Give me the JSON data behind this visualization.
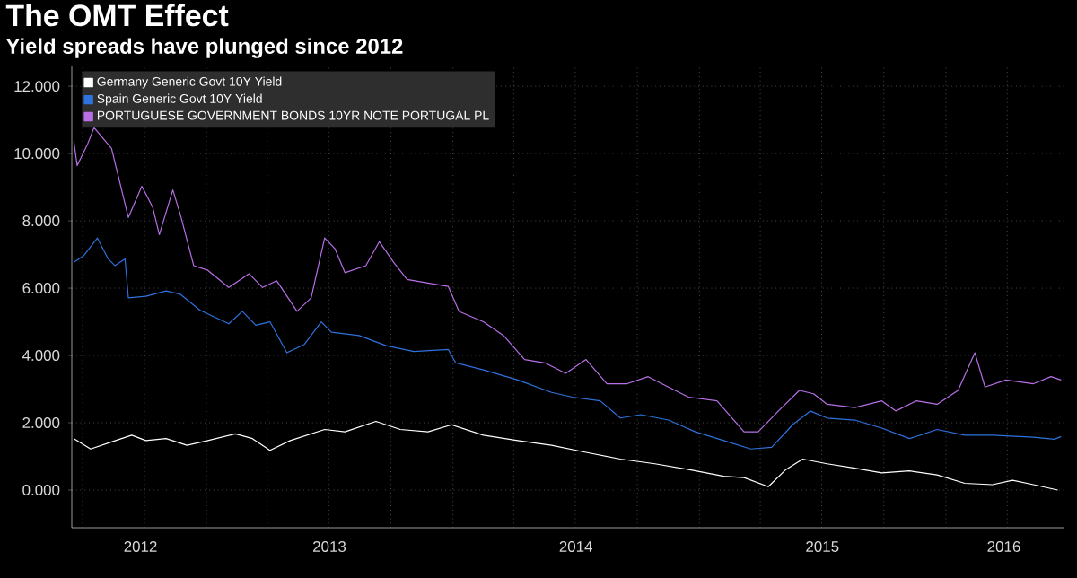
{
  "chart_data": {
    "type": "line",
    "title": "The OMT Effect",
    "subtitle": "Yield spreads have plunged since 2012",
    "xlim": [
      "2012-06-15",
      "2016-06-25"
    ],
    "ylim": [
      -1.12,
      12.59
    ],
    "yticks": [
      {
        "value": 0,
        "label": "0.000"
      },
      {
        "value": 2,
        "label": "2.000"
      },
      {
        "value": 4,
        "label": "4.000"
      },
      {
        "value": 6,
        "label": "6.000"
      },
      {
        "value": 8,
        "label": "8.000"
      },
      {
        "value": 10,
        "label": "10.000"
      },
      {
        "value": 12,
        "label": "12.000"
      }
    ],
    "xticks": [
      {
        "value": "2012-07-01",
        "label": null
      },
      {
        "value": "2012-10-01",
        "label": null
      },
      {
        "value": "2013-01-01",
        "label": null
      },
      {
        "value": "2013-04-01",
        "label": null
      },
      {
        "value": "2013-07-01",
        "label": null
      },
      {
        "value": "2013-10-01",
        "label": null
      },
      {
        "value": "2014-01-01",
        "label": null
      },
      {
        "value": "2014-04-01",
        "label": null
      },
      {
        "value": "2014-07-01",
        "label": null
      },
      {
        "value": "2014-10-01",
        "label": null
      },
      {
        "value": "2015-01-01",
        "label": null
      },
      {
        "value": "2015-04-01",
        "label": null
      },
      {
        "value": "2015-07-01",
        "label": null
      },
      {
        "value": "2015-10-01",
        "label": null
      },
      {
        "value": "2016-01-01",
        "label": null
      },
      {
        "value": "2016-04-01",
        "label": null
      },
      {
        "value": "2012-09-25",
        "label": "2012"
      },
      {
        "value": "2013-07-02",
        "label": "2013"
      },
      {
        "value": "2014-07-02",
        "label": "2014"
      },
      {
        "value": "2015-07-02",
        "label": "2015"
      },
      {
        "value": "2016-03-27",
        "label": "2016"
      }
    ],
    "grid": true,
    "legend": "top left",
    "series": [
      {
        "name": "Germany Generic Govt 10Y Yield",
        "color": "#ffffff",
        "x": [
          "2012-06-18",
          "2012-07-13",
          "2012-08-13",
          "2012-09-12",
          "2012-10-03",
          "2012-11-02",
          "2012-12-03",
          "2013-01-03",
          "2013-02-13",
          "2013-03-10",
          "2013-04-05",
          "2013-05-05",
          "2013-06-25",
          "2013-07-25",
          "2013-09-09",
          "2013-10-15",
          "2013-11-25",
          "2013-12-30",
          "2014-02-15",
          "2014-04-07",
          "2014-05-27",
          "2014-07-17",
          "2014-09-06",
          "2014-10-27",
          "2014-12-16",
          "2015-02-06",
          "2015-03-08",
          "2015-04-13",
          "2015-05-09",
          "2015-06-03",
          "2015-07-09",
          "2015-08-19",
          "2015-09-28",
          "2015-11-08",
          "2015-12-19",
          "2016-01-29",
          "2016-03-10",
          "2016-04-09",
          "2016-05-10",
          "2016-06-15"
        ],
        "values": [
          1.53,
          1.22,
          1.43,
          1.63,
          1.47,
          1.53,
          1.33,
          1.47,
          1.67,
          1.53,
          1.18,
          1.47,
          1.8,
          1.73,
          2.04,
          1.8,
          1.73,
          1.94,
          1.63,
          1.47,
          1.33,
          1.12,
          0.92,
          0.78,
          0.61,
          0.41,
          0.37,
          0.1,
          0.61,
          0.92,
          0.78,
          0.65,
          0.51,
          0.57,
          0.45,
          0.2,
          0.16,
          0.29,
          0.16,
          0.0
        ]
      },
      {
        "name": "Spain Generic Govt 10Y Yield",
        "color": "#2f72dd",
        "x": [
          "2012-06-18",
          "2012-07-03",
          "2012-07-23",
          "2012-08-08",
          "2012-08-18",
          "2012-09-02",
          "2012-09-07",
          "2012-10-03",
          "2012-11-02",
          "2012-11-23",
          "2012-12-22",
          "2013-02-03",
          "2013-02-23",
          "2013-03-15",
          "2013-04-05",
          "2013-04-30",
          "2013-05-26",
          "2013-06-20",
          "2013-07-05",
          "2013-08-15",
          "2013-09-24",
          "2013-11-04",
          "2013-12-25",
          "2014-01-05",
          "2014-02-15",
          "2014-04-07",
          "2014-05-27",
          "2014-06-27",
          "2014-08-07",
          "2014-09-06",
          "2014-10-06",
          "2014-11-16",
          "2014-12-26",
          "2015-02-06",
          "2015-03-18",
          "2015-04-18",
          "2015-05-19",
          "2015-06-14",
          "2015-07-09",
          "2015-08-19",
          "2015-09-28",
          "2015-11-08",
          "2015-12-19",
          "2016-01-29",
          "2016-03-10",
          "2016-05-10",
          "2016-06-10",
          "2016-06-20"
        ],
        "values": [
          6.77,
          6.97,
          7.49,
          6.87,
          6.67,
          6.87,
          5.71,
          5.76,
          5.92,
          5.82,
          5.35,
          4.94,
          5.31,
          4.9,
          5.0,
          4.08,
          4.33,
          5.0,
          4.69,
          4.59,
          4.29,
          4.12,
          4.18,
          3.78,
          3.57,
          3.27,
          2.9,
          2.76,
          2.65,
          2.14,
          2.24,
          2.08,
          1.73,
          1.47,
          1.22,
          1.27,
          1.94,
          2.35,
          2.14,
          2.08,
          1.84,
          1.53,
          1.8,
          1.63,
          1.63,
          1.57,
          1.51,
          1.59
        ]
      },
      {
        "name": "PORTUGUESE GOVERNMENT BONDS 10YR NOTE PORTUGAL PL",
        "color": "#b86fe6",
        "x": [
          "2012-06-18",
          "2012-06-23",
          "2012-07-08",
          "2012-07-18",
          "2012-08-03",
          "2012-08-13",
          "2012-08-23",
          "2012-09-07",
          "2012-09-27",
          "2012-10-13",
          "2012-10-23",
          "2012-11-12",
          "2012-11-23",
          "2012-12-13",
          "2013-01-03",
          "2013-02-03",
          "2013-03-05",
          "2013-03-25",
          "2013-04-15",
          "2013-05-15",
          "2013-06-05",
          "2013-06-25",
          "2013-07-10",
          "2013-07-25",
          "2013-08-25",
          "2013-09-14",
          "2013-10-05",
          "2013-10-25",
          "2013-11-25",
          "2013-12-25",
          "2014-01-10",
          "2014-02-15",
          "2014-03-17",
          "2014-04-17",
          "2014-05-17",
          "2014-06-17",
          "2014-07-17",
          "2014-08-17",
          "2014-09-16",
          "2014-10-17",
          "2014-11-16",
          "2014-12-16",
          "2015-01-27",
          "2015-03-08",
          "2015-03-29",
          "2015-04-28",
          "2015-05-29",
          "2015-06-19",
          "2015-07-09",
          "2015-08-19",
          "2015-09-28",
          "2015-10-19",
          "2015-11-18",
          "2015-12-19",
          "2016-01-19",
          "2016-02-13",
          "2016-02-28",
          "2016-03-30",
          "2016-05-10",
          "2016-06-05",
          "2016-06-20"
        ],
        "values": [
          10.36,
          9.64,
          10.26,
          10.77,
          null,
          10.15,
          9.33,
          8.1,
          9.03,
          8.41,
          7.59,
          8.92,
          8.2,
          6.67,
          6.53,
          6.02,
          6.43,
          6.02,
          6.22,
          5.31,
          5.71,
          7.49,
          7.18,
          6.46,
          6.67,
          7.38,
          6.77,
          6.26,
          6.15,
          6.05,
          5.31,
          5.0,
          4.59,
          3.88,
          3.78,
          3.47,
          3.88,
          3.16,
          3.16,
          3.37,
          3.06,
          2.76,
          2.65,
          1.73,
          1.73,
          2.35,
          2.96,
          2.86,
          2.55,
          2.45,
          2.65,
          2.35,
          2.65,
          2.55,
          2.96,
          4.08,
          3.06,
          3.27,
          3.16,
          3.37,
          3.27
        ]
      }
    ]
  }
}
